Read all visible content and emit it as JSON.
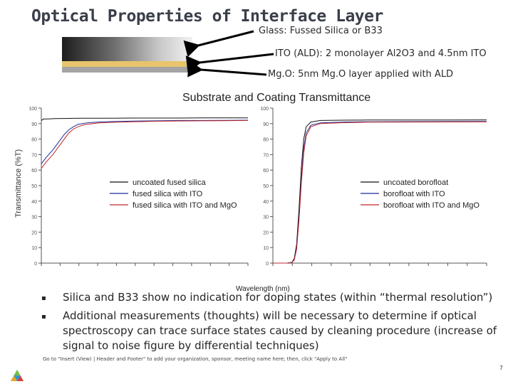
{
  "slide": {
    "title": "Optical Properties of Interface Layer",
    "layers": {
      "glass": "Glass: Fussed Silica or B33",
      "ito": "ITO (ALD): 2 monolayer Al2O3 and 4.5nm ITO",
      "mgo": "Mg.O: 5nm Mg.O layer applied with ALD"
    },
    "bullets": [
      "Silica and B33 show no indication for doping states (within “thermal resolution”)",
      "Additional measurements (thoughts) will be necessary to determine if optical spectroscopy can trace surface states caused by cleaning procedure (increase of signal to noise figure by differential techniques)"
    ],
    "footer": "Go to \"Insert (View) | Header and Footer\" to add your organization, sponsor, meeting name here; then, click \"Apply to All\"",
    "page_number": "7"
  },
  "chart_data": {
    "type": "line",
    "title": "Substrate and Coating Transmittance",
    "xlabel": "Wavelength (nm)",
    "ylabel": "Transmittance (%T)",
    "ylim": [
      0,
      100
    ],
    "y_ticks": [
      "0",
      "10",
      "20",
      "30",
      "40",
      "50",
      "60",
      "70",
      "80",
      "90",
      "100"
    ],
    "colors": {
      "uncoated": "#111111",
      "ito": "#1f2f9a",
      "mgo": "#c02828"
    },
    "panels": [
      {
        "xlim": [
          200,
          1100
        ],
        "series": [
          {
            "name": "uncoated fused silica",
            "color_key": "uncoated",
            "x": [
              200,
              210,
              230,
              260,
              300,
              340,
              380,
              420,
              500,
              600,
              700,
              800,
              900,
              1000,
              1100
            ],
            "y": [
              92,
              93,
              93,
              93.2,
              93.3,
              93.4,
              93.5,
              93.5,
              93.5,
              93.6,
              93.6,
              93.6,
              93.7,
              93.7,
              93.7
            ]
          },
          {
            "name": "fused silica with ITO",
            "color_key": "ito",
            "x": [
              200,
              220,
              250,
              280,
              300,
              320,
              340,
              360,
              380,
              400,
              450,
              500,
              600,
              700,
              800,
              900,
              1000,
              1100
            ],
            "y": [
              64,
              68,
              73,
              79,
              83,
              86,
              88,
              89.5,
              90,
              90.5,
              91,
              91.3,
              91.6,
              91.8,
              92,
              92,
              92.1,
              92.2
            ]
          },
          {
            "name": "fused silica with ITO and MgO",
            "color_key": "mgo",
            "x": [
              200,
              220,
              250,
              280,
              300,
              320,
              340,
              360,
              380,
              400,
              450,
              500,
              600,
              700,
              800,
              900,
              1000,
              1100
            ],
            "y": [
              61,
              65,
              70,
              76,
              80,
              84,
              86.5,
              88,
              89,
              89.6,
              90.4,
              90.8,
              91.2,
              91.5,
              91.7,
              91.8,
              91.9,
              92
            ]
          }
        ]
      },
      {
        "xlim": [
          200,
          1100
        ],
        "series": [
          {
            "name": "uncoated borofloat",
            "color_key": "uncoated",
            "x": [
              200,
              260,
              280,
              290,
              300,
              310,
              320,
              330,
              340,
              360,
              400,
              500,
              600,
              800,
              1100
            ],
            "y": [
              0,
              0,
              0.5,
              3,
              12,
              35,
              62,
              80,
              88,
              91,
              92,
              92.2,
              92.3,
              92.3,
              92.4
            ]
          },
          {
            "name": "borofloat with ITO",
            "color_key": "ito",
            "x": [
              200,
              260,
              280,
              290,
              300,
              310,
              320,
              330,
              340,
              360,
              400,
              500,
              600,
              800,
              1100
            ],
            "y": [
              0,
              0,
              0.5,
              2.5,
              10,
              30,
              55,
              74,
              84,
              89,
              90.5,
              91,
              91.2,
              91.3,
              91.4
            ]
          },
          {
            "name": "borofloat with ITO and MgO",
            "color_key": "mgo",
            "x": [
              200,
              260,
              280,
              290,
              300,
              310,
              320,
              330,
              340,
              360,
              400,
              500,
              600,
              800,
              1100
            ],
            "y": [
              0,
              0,
              0.4,
              2,
              9,
              28,
              52,
              71,
              82,
              88,
              90,
              90.6,
              90.9,
              91,
              91.1
            ]
          }
        ]
      }
    ]
  }
}
